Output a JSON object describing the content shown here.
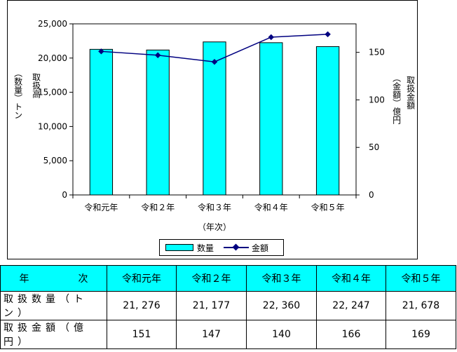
{
  "chart_data": {
    "type": "bar+line",
    "categories": [
      "令和元年",
      "令和２年",
      "令和３年",
      "令和４年",
      "令和５年"
    ],
    "series": [
      {
        "name": "数量",
        "type": "bar",
        "axis": "left",
        "values": [
          21276,
          21177,
          22360,
          22247,
          21678
        ]
      },
      {
        "name": "金額",
        "type": "line",
        "axis": "right",
        "values": [
          151,
          147,
          140,
          166,
          169
        ]
      }
    ],
    "xlabel": "（年次）",
    "ylabel_left": "取扱高（数量）トン",
    "ylabel_right": "取扱金額（金額）億円",
    "ylim_left": [
      0,
      25000
    ],
    "ylim_right": [
      0,
      180
    ],
    "yticks_left": [
      "0",
      "5,000",
      "10,000",
      "15,000",
      "20,000",
      "25,000"
    ],
    "yticks_right": [
      "0",
      "50",
      "100",
      "150"
    ],
    "legend_placement": "bottom",
    "colors": {
      "bar": "#00ffff",
      "line": "#000080"
    }
  },
  "labels": {
    "left_col1": "取扱高",
    "left_col2": "（数量）トン",
    "right_col1": "取扱金額",
    "right_col2": "（金額）億円",
    "xlabel": "（年次）"
  },
  "legend": {
    "bar": "数量",
    "line": "金額"
  },
  "table": {
    "corner_a": "年",
    "corner_b": "次",
    "years": [
      "令和元年",
      "令和２年",
      "令和３年",
      "令和４年",
      "令和５年"
    ],
    "rows": [
      {
        "label": "取扱数量（トン）",
        "values": [
          "21, 276",
          "21, 177",
          "22, 360",
          "22, 247",
          "21, 678"
        ]
      },
      {
        "label": "取扱金額（億円）",
        "values": [
          "151",
          "147",
          "140",
          "166",
          "169"
        ]
      }
    ]
  }
}
